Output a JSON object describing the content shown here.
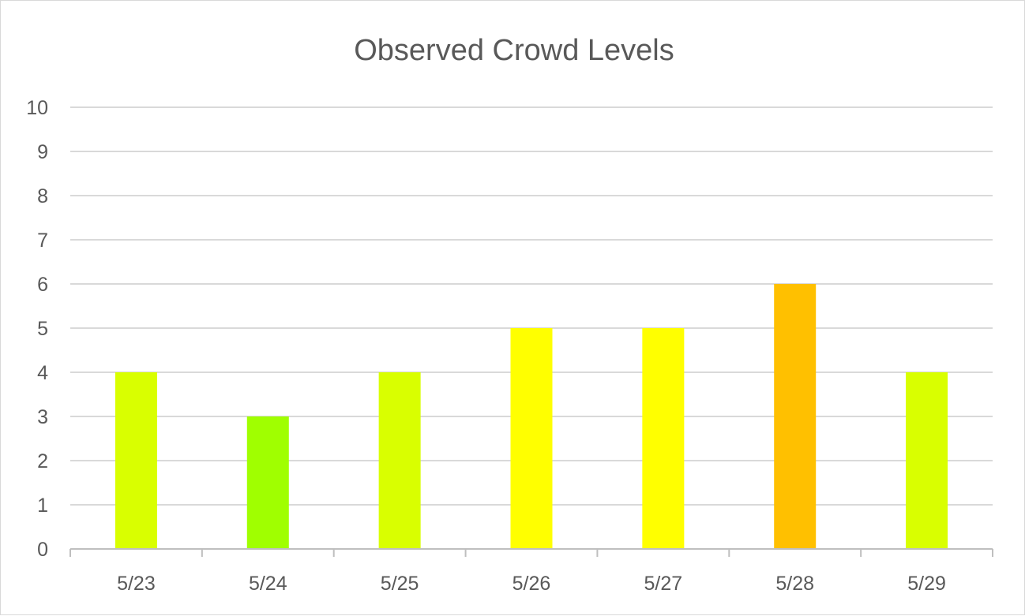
{
  "chart_data": {
    "type": "bar",
    "title": "Observed Crowd Levels",
    "xlabel": "",
    "ylabel": "",
    "categories": [
      "5/23",
      "5/24",
      "5/25",
      "5/26",
      "5/27",
      "5/28",
      "5/29"
    ],
    "values": [
      4,
      3,
      4,
      5,
      5,
      6,
      4
    ],
    "bar_colors": [
      "#d9ff00",
      "#a0ff00",
      "#d9ff00",
      "#ffff00",
      "#ffff00",
      "#ffc000",
      "#d9ff00"
    ],
    "ylim": [
      0,
      10
    ],
    "yticks": [
      "0",
      "1",
      "2",
      "3",
      "4",
      "5",
      "6",
      "7",
      "8",
      "9",
      "10"
    ],
    "grid": true,
    "legend": "none"
  },
  "colors": {
    "gridline": "#d9d9d9",
    "axis": "#bfbfbf",
    "text": "#595959"
  }
}
